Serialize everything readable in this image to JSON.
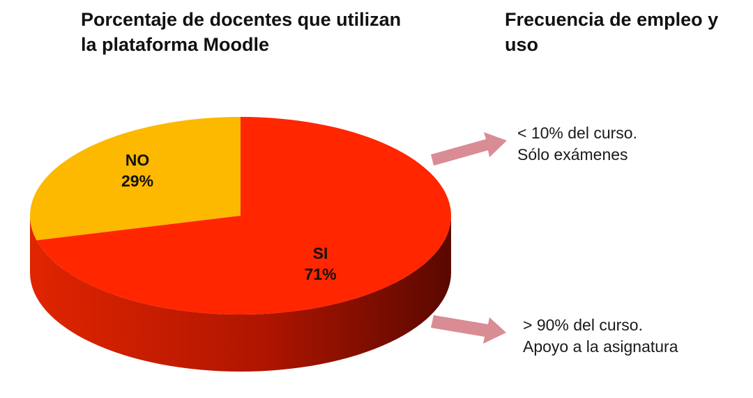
{
  "titles": {
    "left": "Porcentaje de docentes que utilizan la plataforma Moodle",
    "right": "Frecuencia de empleo y uso"
  },
  "chart_data": {
    "type": "pie",
    "title": "Porcentaje de docentes que utilizan la plataforma Moodle",
    "style": "3d",
    "slices": [
      {
        "label": "NO",
        "value": 29,
        "value_label": "29%",
        "color": "#FDB800"
      },
      {
        "label": "SI",
        "value": 71,
        "value_label": "71%",
        "color": "#FF2600"
      }
    ]
  },
  "annotations": {
    "top": {
      "line1": "< 10% del curso.",
      "line2": "Sólo exámenes"
    },
    "bottom": {
      "line1": "> 90% del curso.",
      "line2": "Apoyo a la asignatura"
    }
  },
  "colors": {
    "arrow": "#D98C94",
    "side_light": "#E02500",
    "side_dark": "#5A0800"
  }
}
